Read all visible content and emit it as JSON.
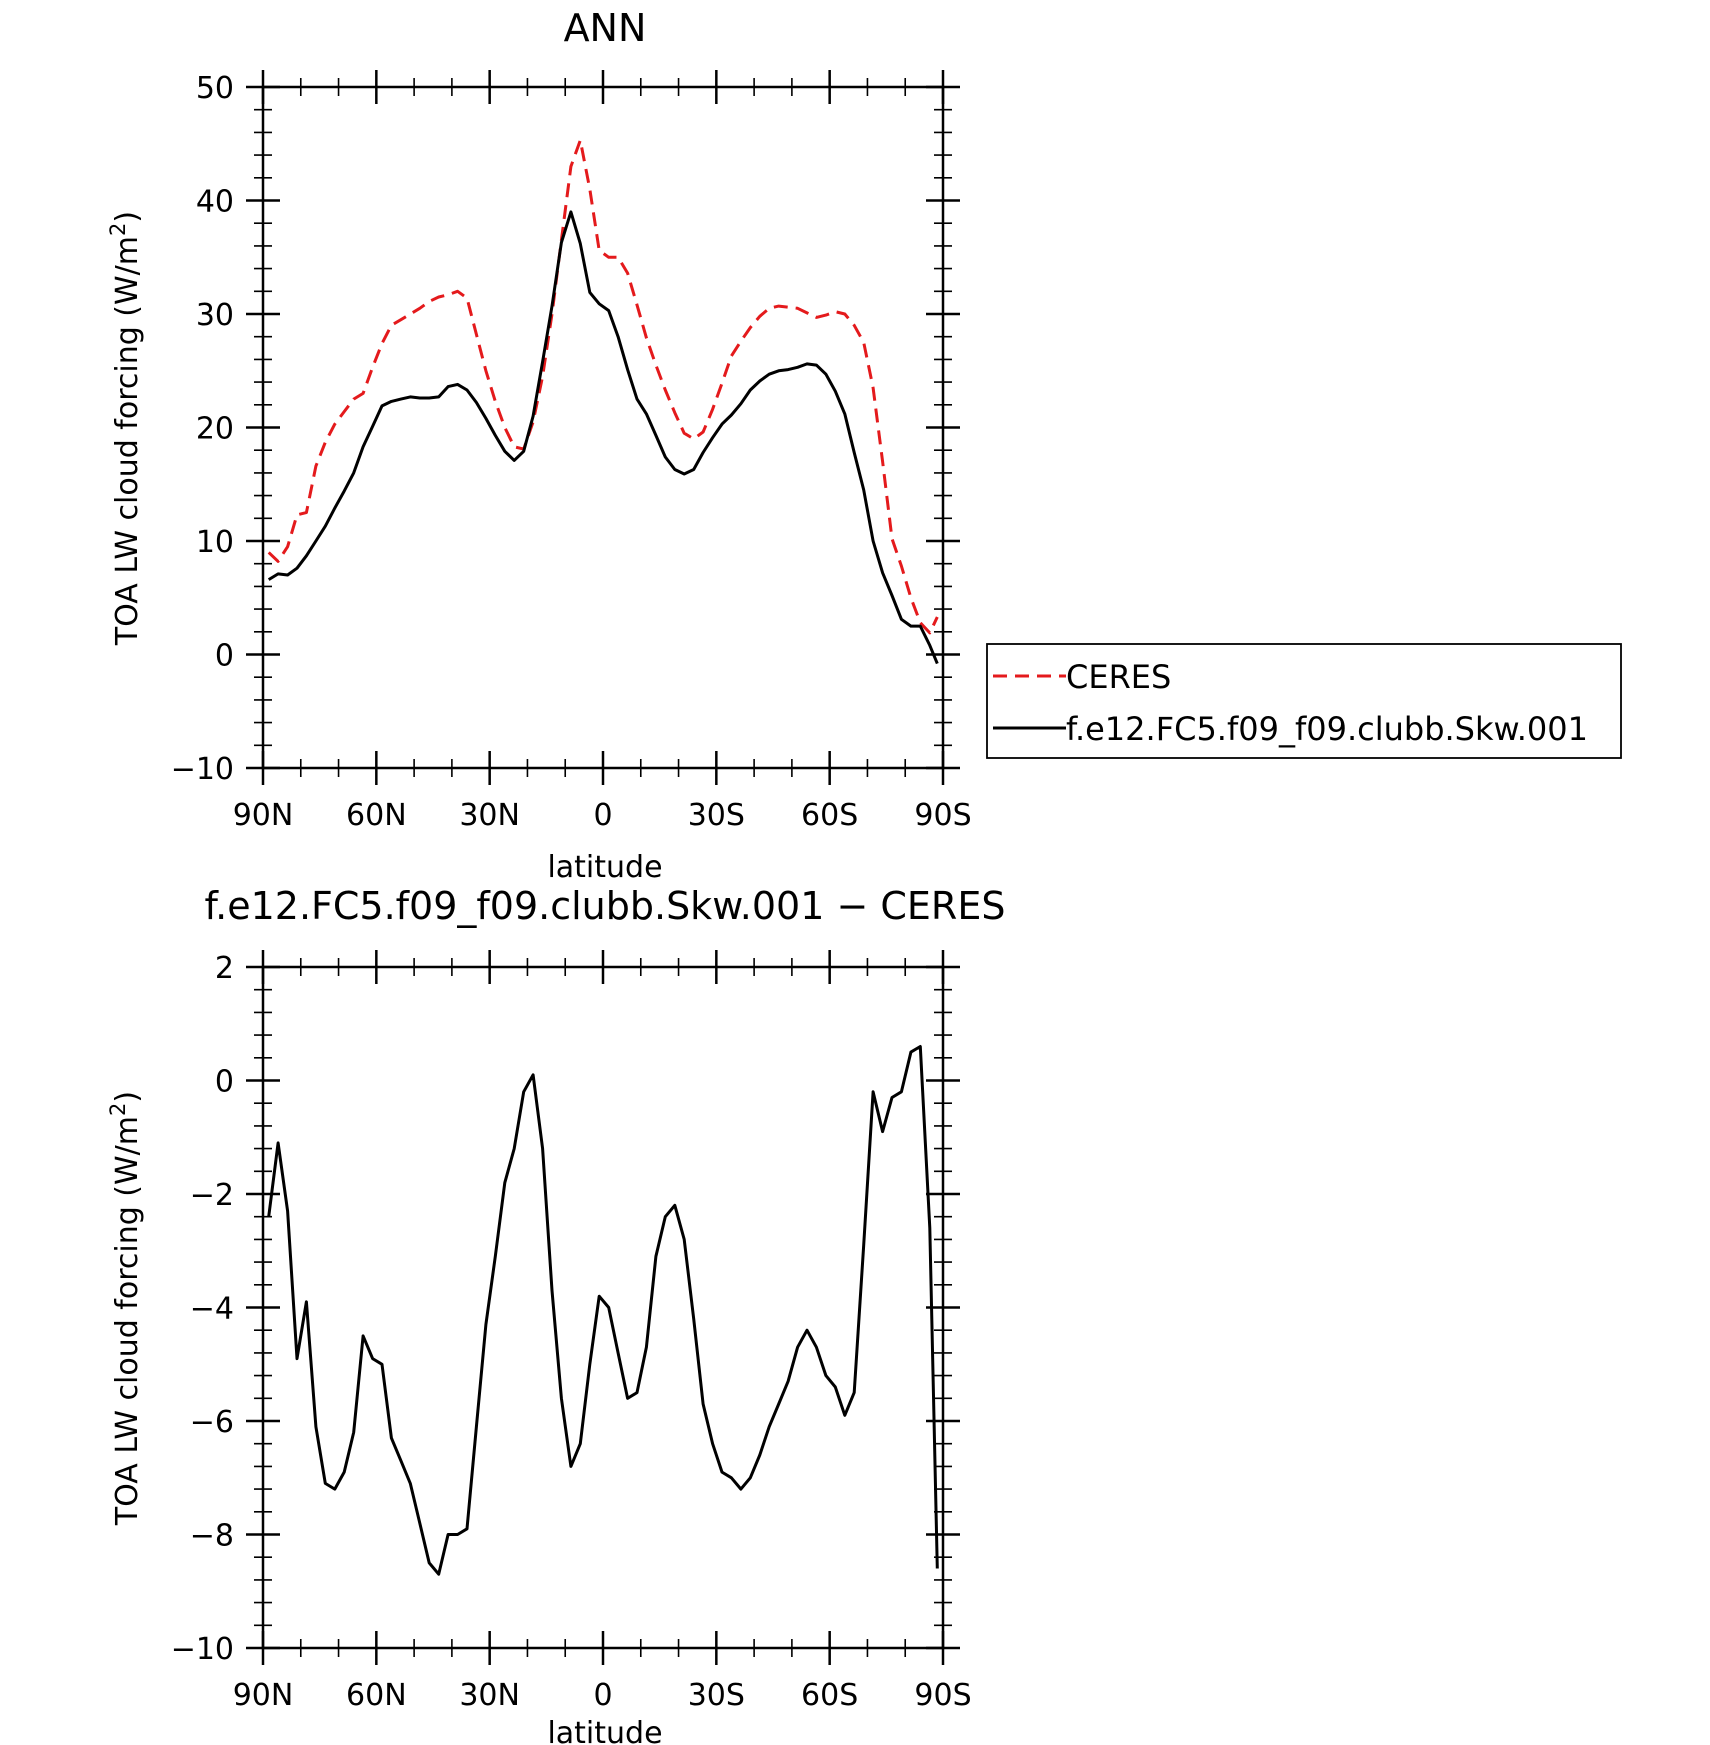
{
  "chart_data": [
    {
      "type": "line",
      "title": "ANN",
      "xlabel": "latitude",
      "ylabel": "TOA LW cloud forcing (W/m",
      "ylabel_sup": "2",
      "ylabel_close": ")",
      "xlim": [
        90,
        -90
      ],
      "ylim": [
        -10,
        50
      ],
      "xticks": [
        90,
        60,
        30,
        0,
        -30,
        -60,
        -90
      ],
      "xticklabels": [
        "90N",
        "60N",
        "30N",
        "0",
        "30S",
        "60S",
        "90S"
      ],
      "yticks": [
        -10,
        0,
        10,
        20,
        30,
        40,
        50
      ],
      "yticklabels": [
        "−10",
        "0",
        "10",
        "20",
        "30",
        "40",
        "50"
      ],
      "legend": {
        "placement": "right"
      },
      "series": [
        {
          "name": "CERES",
          "color": "#e41a1c",
          "dash": "dashed",
          "x": [
            88.5,
            86,
            83.5,
            81,
            78.5,
            76,
            73.5,
            71,
            68.5,
            66,
            63.5,
            61,
            58.5,
            56,
            53.5,
            51,
            48.5,
            46,
            43.5,
            41,
            38.5,
            36,
            33.5,
            31,
            28.5,
            26,
            23.5,
            21,
            18.5,
            16,
            13.5,
            11,
            8.5,
            6,
            3.5,
            1,
            -1.5,
            -4,
            -6.5,
            -9,
            -11.5,
            -14,
            -16.5,
            -19,
            -21.5,
            -24,
            -26.5,
            -29,
            -31.5,
            -34,
            -36.5,
            -39,
            -41.5,
            -44,
            -46.5,
            -49,
            -51.5,
            -54,
            -56.5,
            -59,
            -61.5,
            -64,
            -66.5,
            -69,
            -71.5,
            -74,
            -76.5,
            -79,
            -81.5,
            -84,
            -86.5,
            -88.5
          ],
          "y": [
            9,
            8.2,
            9.5,
            12.3,
            12.5,
            16.6,
            18.7,
            20.3,
            21.4,
            22.5,
            23,
            25.3,
            27.4,
            29,
            29.5,
            30,
            30.5,
            31.1,
            31.5,
            31.7,
            32,
            31.4,
            28.2,
            25,
            22.3,
            20,
            18.3,
            18.1,
            20.5,
            24.5,
            30,
            36.5,
            43,
            45.3,
            41,
            35.6,
            35,
            35,
            33.6,
            30.8,
            27.9,
            25.5,
            23.3,
            21.3,
            19.5,
            19,
            19.6,
            21.6,
            23.9,
            26.3,
            27.6,
            28.8,
            29.8,
            30.5,
            30.7,
            30.6,
            30.5,
            30.1,
            29.7,
            29.9,
            30.2,
            30,
            29,
            27.5,
            23.5,
            17,
            10.2,
            7.8,
            5,
            2.8,
            1.9,
            3.3
          ]
        },
        {
          "name": "f.e12.FC5.f09_f09.clubb.Skw.001",
          "color": "#000000",
          "dash": "solid",
          "x": [
            88.5,
            86,
            83.5,
            81,
            78.5,
            76,
            73.5,
            71,
            68.5,
            66,
            63.5,
            61,
            58.5,
            56,
            53.5,
            51,
            48.5,
            46,
            43.5,
            41,
            38.5,
            36,
            33.5,
            31,
            28.5,
            26,
            23.5,
            21,
            18.5,
            16,
            13.5,
            11,
            8.5,
            6,
            3.5,
            1,
            -1.5,
            -4,
            -6.5,
            -9,
            -11.5,
            -14,
            -16.5,
            -19,
            -21.5,
            -24,
            -26.5,
            -29,
            -31.5,
            -34,
            -36.5,
            -39,
            -41.5,
            -44,
            -46.5,
            -49,
            -51.5,
            -54,
            -56.5,
            -59,
            -61.5,
            -64,
            -66.5,
            -69,
            -71.5,
            -74,
            -76.5,
            -79,
            -81.5,
            -84,
            -86.5,
            -88.5
          ],
          "y": [
            6.6,
            7.1,
            7,
            7.6,
            8.7,
            10,
            11.3,
            12.9,
            14.4,
            16,
            18.3,
            20.1,
            21.9,
            22.3,
            22.5,
            22.7,
            22.6,
            22.6,
            22.7,
            23.6,
            23.8,
            23.3,
            22.2,
            20.8,
            19.3,
            17.9,
            17.1,
            17.9,
            21,
            25.8,
            30.7,
            36.3,
            39,
            36.2,
            31.9,
            30.9,
            30.3,
            28,
            25.1,
            22.5,
            21.2,
            19.3,
            17.4,
            16.3,
            15.9,
            16.3,
            17.8,
            19.1,
            20.3,
            21.1,
            22.1,
            23.3,
            24.1,
            24.7,
            25,
            25.1,
            25.3,
            25.6,
            25.5,
            24.7,
            23.2,
            21.2,
            17.8,
            14.5,
            10,
            7.2,
            5.2,
            3.1,
            2.5,
            2.5,
            0.8,
            -0.8
          ]
        }
      ]
    },
    {
      "type": "line",
      "title": "f.e12.FC5.f09_f09.clubb.Skw.001 − CERES",
      "xlabel": "latitude",
      "ylabel": "TOA LW cloud forcing (W/m",
      "ylabel_sup": "2",
      "ylabel_close": ")",
      "xlim": [
        90,
        -90
      ],
      "ylim": [
        -10,
        2
      ],
      "xticks": [
        90,
        60,
        30,
        0,
        -30,
        -60,
        -90
      ],
      "xticklabels": [
        "90N",
        "60N",
        "30N",
        "0",
        "30S",
        "60S",
        "90S"
      ],
      "yticks": [
        -10,
        -8,
        -6,
        -4,
        -2,
        0,
        2
      ],
      "yticklabels": [
        "−10",
        "−8",
        "−6",
        "−4",
        "−2",
        "0",
        "2"
      ],
      "series": [
        {
          "color": "#000000",
          "dash": "solid",
          "x": [
            88.5,
            86,
            83.5,
            81,
            78.5,
            76,
            73.5,
            71,
            68.5,
            66,
            63.5,
            61,
            58.5,
            56,
            53.5,
            51,
            48.5,
            46,
            43.5,
            41,
            38.5,
            36,
            33.5,
            31,
            28.5,
            26,
            23.5,
            21,
            18.5,
            16,
            13.5,
            11,
            8.5,
            6,
            3.5,
            1,
            -1.5,
            -4,
            -6.5,
            -9,
            -11.5,
            -14,
            -16.5,
            -19,
            -21.5,
            -24,
            -26.5,
            -29,
            -31.5,
            -34,
            -36.5,
            -39,
            -41.5,
            -44,
            -46.5,
            -49,
            -51.5,
            -54,
            -56.5,
            -59,
            -61.5,
            -64,
            -66.5,
            -69,
            -71.5,
            -74,
            -76.5,
            -79,
            -81.5,
            -84,
            -86.5,
            -88.5
          ],
          "y": [
            -2.4,
            -1.1,
            -2.3,
            -4.9,
            -3.9,
            -6.1,
            -7.1,
            -7.2,
            -6.9,
            -6.2,
            -4.5,
            -4.9,
            -5,
            -6.3,
            -6.7,
            -7.1,
            -7.8,
            -8.5,
            -8.7,
            -8,
            -8,
            -7.9,
            -6.1,
            -4.3,
            -3.1,
            -1.8,
            -1.2,
            -0.2,
            0.1,
            -1.2,
            -3.7,
            -5.6,
            -6.8,
            -6.4,
            -5,
            -3.8,
            -4,
            -4.8,
            -5.6,
            -5.5,
            -4.7,
            -3.1,
            -2.4,
            -2.2,
            -2.8,
            -4.2,
            -5.7,
            -6.4,
            -6.9,
            -7,
            -7.2,
            -7,
            -6.6,
            -6.1,
            -5.7,
            -5.3,
            -4.7,
            -4.4,
            -4.7,
            -5.2,
            -5.4,
            -5.9,
            -5.5,
            -2.9,
            -0.2,
            -0.9,
            -0.3,
            -0.2,
            0.5,
            0.6,
            -2.6,
            -8.6
          ]
        }
      ]
    }
  ]
}
